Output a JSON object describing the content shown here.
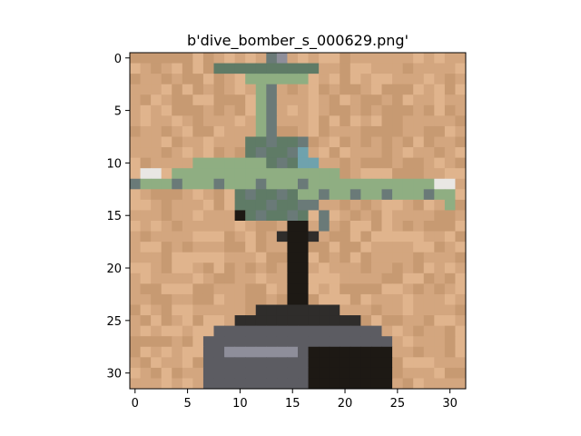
{
  "chart_data": {
    "type": "heatmap",
    "title": "b'dive_bomber_s_000629.png'",
    "xlabel": "",
    "ylabel": "",
    "xlim": [
      -0.5,
      31.5
    ],
    "ylim": [
      31.5,
      -0.5
    ],
    "x_ticks": [
      0,
      5,
      10,
      15,
      20,
      25,
      30
    ],
    "y_ticks": [
      0,
      5,
      10,
      15,
      20,
      25,
      30
    ],
    "grid": false,
    "image": {
      "width": 32,
      "height": 32,
      "description_colors": {
        "sand": "#d3a67f",
        "sand_light": "#e0b48d",
        "sand_dark": "#c79a72",
        "plane_green": "#8fae82",
        "plane_green_dark": "#5f7b66",
        "plane_gray": "#6a7a78",
        "plane_blue": "#6fa2ad",
        "wing_tip": "#e9e7e4",
        "stand_black": "#1d1914",
        "stand_dark": "#2f2d2b",
        "base_gray": "#5c5c62",
        "base_light": "#8e8e9a",
        "base_shadow": "#403e3f"
      }
    }
  }
}
